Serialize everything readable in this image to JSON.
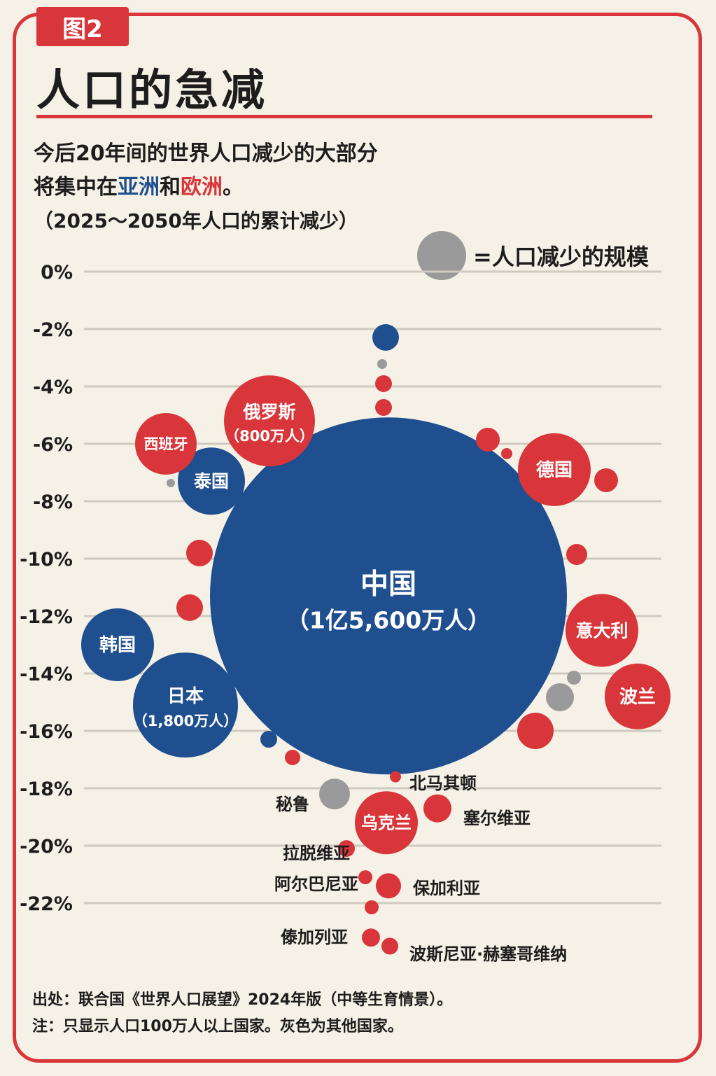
{
  "header": {
    "badge": "图2",
    "title": "人口的急减",
    "subtitle_line1": "今后20年间的世界人口减少的大部分",
    "subtitle_line2_pre": "将集中在",
    "subtitle_asia": "亚洲",
    "subtitle_mid": "和",
    "subtitle_europe": "欧洲",
    "subtitle_end": "。",
    "subtitle_range": "（2025～2050年人口的累计减少）"
  },
  "legend": {
    "text": "=人口减少的规模",
    "icon": "gray-circle"
  },
  "colors": {
    "asia": "#1f4f8f",
    "europe": "#d8363a",
    "other": "#9a9a9a",
    "accent": "#d8363a"
  },
  "chart_data": {
    "type": "bubble",
    "y_axis": {
      "ticks": [
        "0%",
        "-2%",
        "-4%",
        "-6%",
        "-8%",
        "-10%",
        "-12%",
        "-14%",
        "-16%",
        "-18%",
        "-20%",
        "-22%"
      ],
      "ylim": [
        0,
        -22
      ]
    },
    "grid": true,
    "legend_placement": "top-right",
    "bubbles": [
      {
        "name": "中国",
        "value": "（1亿5,600万人）",
        "region": "asia",
        "y": -11.3
      },
      {
        "name": "日本",
        "value": "（1,800万人）",
        "region": "asia",
        "y": -15.1
      },
      {
        "name": "韩国",
        "value": "",
        "region": "asia",
        "y": -13
      },
      {
        "name": "泰国",
        "value": "",
        "region": "asia",
        "y": -7.3
      },
      {
        "name": "俄罗斯",
        "value": "（800万人）",
        "region": "europe",
        "y": -5.2
      },
      {
        "name": "西班牙",
        "value": "",
        "region": "europe",
        "y": -6
      },
      {
        "name": "德国",
        "value": "",
        "region": "europe",
        "y": -6.9
      },
      {
        "name": "意大利",
        "value": "",
        "region": "europe",
        "y": -12.5
      },
      {
        "name": "波兰",
        "value": "",
        "region": "europe",
        "y": -14.8
      },
      {
        "name": "乌克兰",
        "value": "",
        "region": "europe",
        "y": -19.2
      },
      {
        "name": "秘鲁",
        "value": "",
        "region": "other",
        "y": -18.2
      },
      {
        "name": "北马其顿",
        "value": "",
        "region": "europe",
        "y": -17.6
      },
      {
        "name": "塞尔维亚",
        "value": "",
        "region": "europe",
        "y": -18.7
      },
      {
        "name": "拉脱维亚",
        "value": "",
        "region": "europe",
        "y": -20.1
      },
      {
        "name": "阿尔巴尼亚",
        "value": "",
        "region": "europe",
        "y": -21.1
      },
      {
        "name": "保加利亚",
        "value": "",
        "region": "europe",
        "y": -21.4
      },
      {
        "name": "傣加列亚",
        "value": "",
        "region": "europe",
        "y": -23.2
      },
      {
        "name": "波斯尼亚·赫塞哥维纳",
        "value": "",
        "region": "europe",
        "y": -23.5
      }
    ]
  },
  "footer": {
    "source": "出处：联合国《世界人口展望》2024年版（中等生育情景）。",
    "note": "注：只显示人口100万人以上国家。灰色为其他国家。"
  }
}
